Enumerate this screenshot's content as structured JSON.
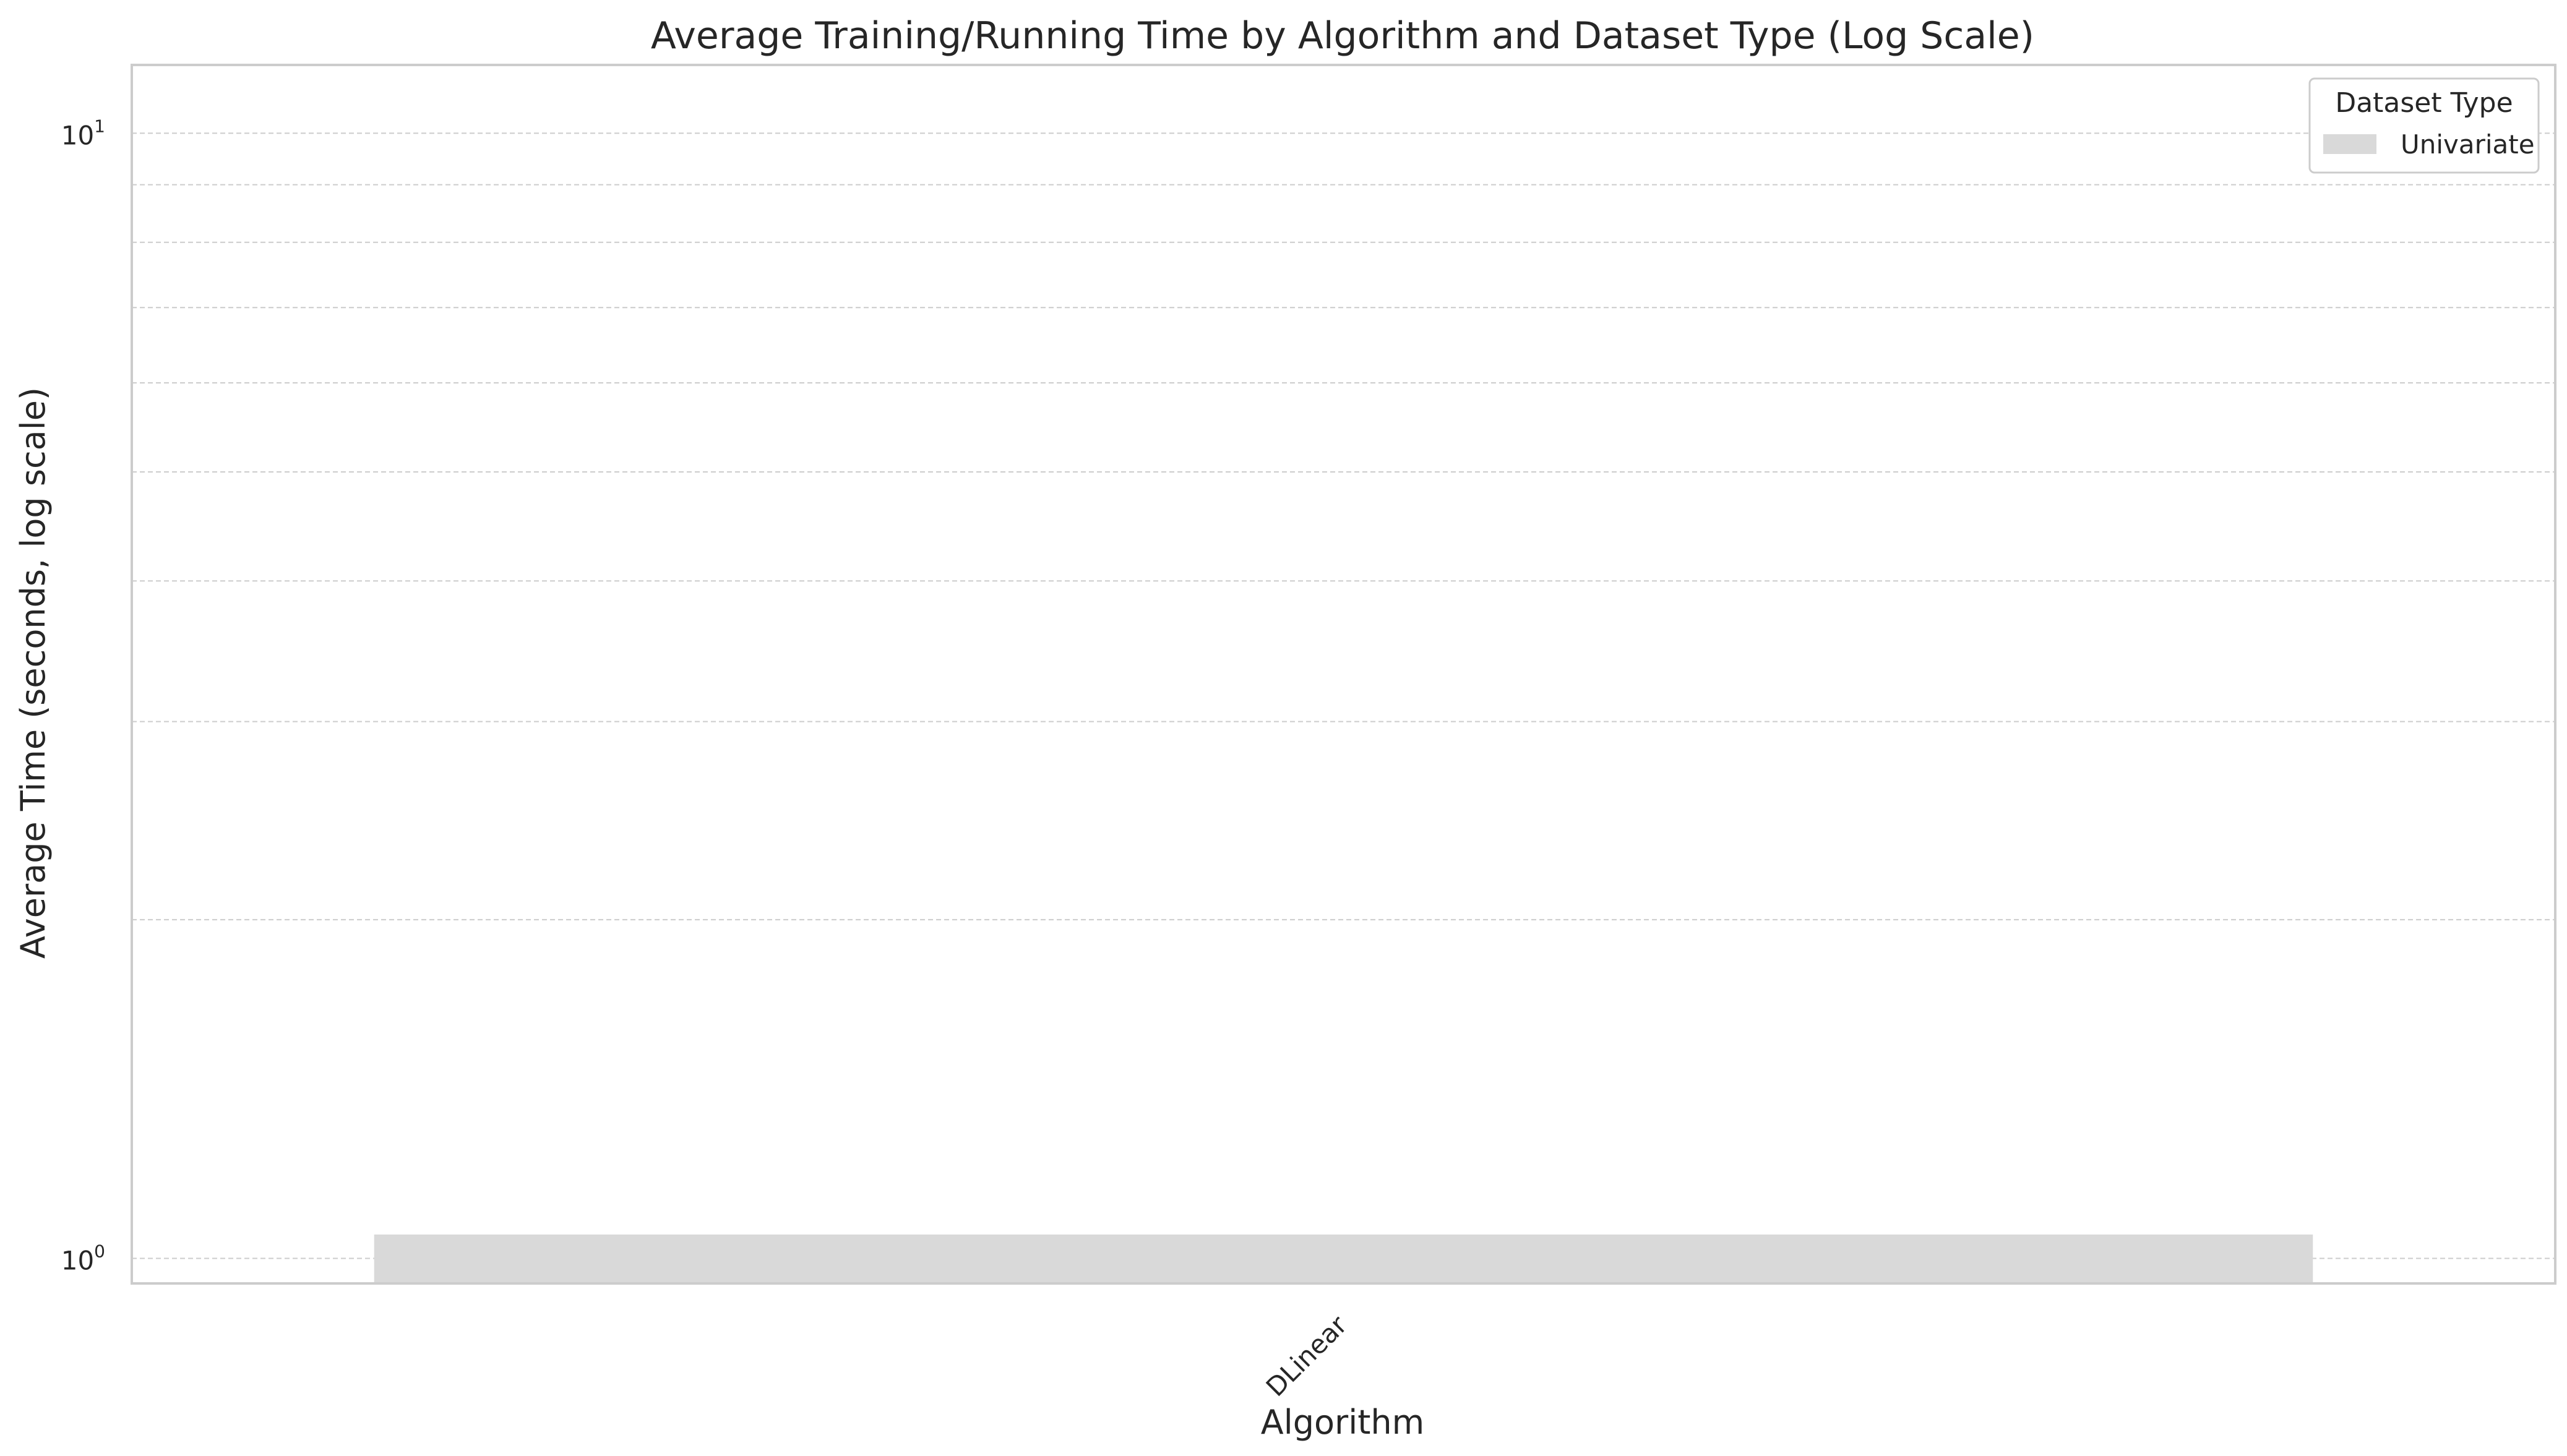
{
  "chart_data": {
    "type": "bar",
    "title": "Average Training/Running Time by Algorithm and Dataset Type (Log Scale)",
    "xlabel": "Algorithm",
    "ylabel": "Average Time (seconds, log scale)",
    "y_scale": "log",
    "ylim": [
      0.95,
      11.5
    ],
    "categories": [
      "DLinear"
    ],
    "series": [
      {
        "name": "Univariate",
        "values": [
          1.05
        ]
      }
    ],
    "y_major_ticks": [
      {
        "value": 1,
        "label_base": "10",
        "label_exp": "0"
      },
      {
        "value": 10,
        "label_base": "10",
        "label_exp": "1"
      }
    ],
    "y_minor_gridlines": [
      2,
      3,
      4,
      5,
      6,
      7,
      8,
      9
    ],
    "grid": true,
    "legend": {
      "title": "Dataset Type",
      "position": "top-right"
    },
    "colors": {
      "Univariate": "#d9d9d9",
      "frame": "#cccccc",
      "grid": "#cccccc",
      "text": "#262626"
    }
  }
}
